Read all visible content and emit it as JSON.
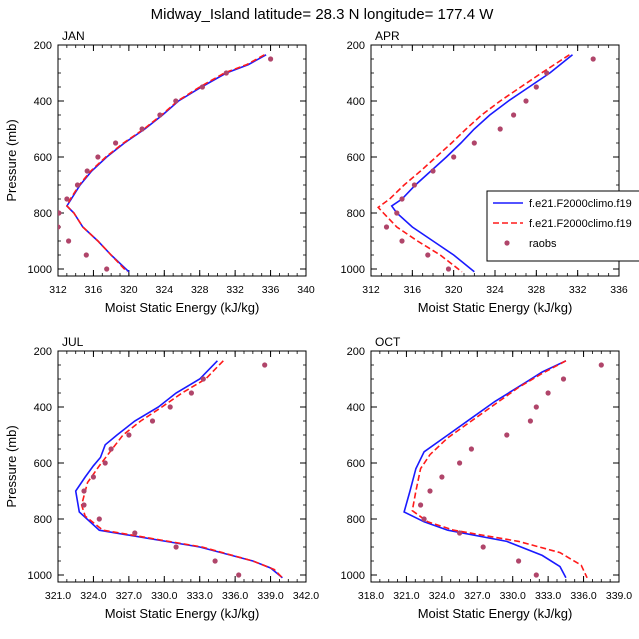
{
  "figure": {
    "title": "Midway_Island  latitude= 28.3 N longitude= 177.4 W"
  },
  "legend": {
    "items": [
      {
        "label": "f.e21.F2000climo.f19",
        "color": "#1a1aff",
        "style": "solid"
      },
      {
        "label": "f.e21.F2000climo.f19",
        "color": "#ff1a1a",
        "style": "dashed"
      },
      {
        "label": "raobs",
        "color": "#b0456a",
        "style": "marker"
      }
    ]
  },
  "colors": {
    "model_a": "#1a1aff",
    "model_b": "#ff1a1a",
    "raobs": "#b0456a"
  },
  "chart_data": [
    {
      "type": "line",
      "panel_label": "JAN",
      "xlabel": "Moist Static Energy (kJ/kg)",
      "ylabel": "Pressure (mb)",
      "xlim": [
        312,
        340
      ],
      "ylim": [
        1025,
        200
      ],
      "xticks": [
        "312",
        "316",
        "320",
        "324",
        "328",
        "332",
        "336",
        "340"
      ],
      "xtick_values": [
        312,
        316,
        320,
        324,
        328,
        332,
        336,
        340
      ],
      "yticks": [
        "200",
        "400",
        "600",
        "800",
        "1000"
      ],
      "ytick_values": [
        200,
        400,
        600,
        800,
        1000
      ],
      "series": [
        {
          "style": "solid",
          "color": "#1a1aff",
          "points": [
            [
              335.5,
              235
            ],
            [
              333.5,
              270
            ],
            [
              331,
              300
            ],
            [
              328.2,
              350
            ],
            [
              325.6,
              400
            ],
            [
              323.8,
              450
            ],
            [
              321.8,
              500
            ],
            [
              319.5,
              550
            ],
            [
              317.5,
              600
            ],
            [
              315.8,
              650
            ],
            [
              314.5,
              700
            ],
            [
              313.5,
              750
            ],
            [
              313,
              775
            ],
            [
              313.8,
              800
            ],
            [
              314.8,
              850
            ],
            [
              316.5,
              900
            ],
            [
              318,
              950
            ],
            [
              320,
              1010
            ]
          ]
        },
        {
          "style": "dashed",
          "color": "#ff1a1a",
          "points": [
            [
              335.3,
              235
            ],
            [
              333.3,
              270
            ],
            [
              330.8,
              300
            ],
            [
              328,
              350
            ],
            [
              325.5,
              400
            ],
            [
              323.7,
              450
            ],
            [
              321.7,
              500
            ],
            [
              319.4,
              550
            ],
            [
              317.4,
              600
            ],
            [
              315.7,
              650
            ],
            [
              314.4,
              700
            ],
            [
              313.4,
              750
            ],
            [
              313,
              775
            ],
            [
              313.8,
              800
            ],
            [
              314.8,
              850
            ],
            [
              316.5,
              900
            ],
            [
              318,
              950
            ],
            [
              319.8,
              1010
            ]
          ]
        }
      ],
      "raobs": [
        [
          336,
          250
        ],
        [
          331,
          300
        ],
        [
          328.3,
          350
        ],
        [
          325.3,
          400
        ],
        [
          323.5,
          450
        ],
        [
          321.5,
          500
        ],
        [
          318.5,
          550
        ],
        [
          316.5,
          600
        ],
        [
          315.3,
          650
        ],
        [
          314.2,
          700
        ],
        [
          313,
          750
        ],
        [
          312.1,
          800
        ],
        [
          312,
          850
        ],
        [
          313.2,
          900
        ],
        [
          315.2,
          950
        ],
        [
          317.5,
          1000
        ]
      ]
    },
    {
      "type": "line",
      "panel_label": "APR",
      "xlabel": "Moist Static Energy (kJ/kg)",
      "ylabel": "",
      "xlim": [
        312,
        336
      ],
      "ylim": [
        1025,
        200
      ],
      "xticks": [
        "312",
        "316",
        "320",
        "324",
        "328",
        "332",
        "336"
      ],
      "xtick_values": [
        312,
        316,
        320,
        324,
        328,
        332,
        336
      ],
      "yticks": [
        "200",
        "400",
        "600",
        "800",
        "1000"
      ],
      "ytick_values": [
        200,
        400,
        600,
        800,
        1000
      ],
      "series": [
        {
          "style": "solid",
          "color": "#1a1aff",
          "points": [
            [
              331.5,
              235
            ],
            [
              329.3,
              300
            ],
            [
              327.3,
              350
            ],
            [
              325.3,
              400
            ],
            [
              323.5,
              450
            ],
            [
              322,
              500
            ],
            [
              320.7,
              550
            ],
            [
              319.3,
              600
            ],
            [
              317.8,
              650
            ],
            [
              316.3,
              700
            ],
            [
              315,
              750
            ],
            [
              314,
              775
            ],
            [
              314.5,
              800
            ],
            [
              316,
              850
            ],
            [
              318,
              900
            ],
            [
              320,
              950
            ],
            [
              322,
              1010
            ]
          ]
        },
        {
          "style": "dashed",
          "color": "#ff1a1a",
          "points": [
            [
              331.2,
              235
            ],
            [
              328.5,
              300
            ],
            [
              326.5,
              350
            ],
            [
              324.5,
              400
            ],
            [
              322.7,
              450
            ],
            [
              321.2,
              500
            ],
            [
              319.8,
              550
            ],
            [
              318.3,
              600
            ],
            [
              316.8,
              650
            ],
            [
              315.2,
              700
            ],
            [
              313.8,
              750
            ],
            [
              312.7,
              780
            ],
            [
              313.2,
              800
            ],
            [
              314.5,
              850
            ],
            [
              316.5,
              900
            ],
            [
              318.7,
              950
            ],
            [
              320.8,
              1010
            ]
          ]
        }
      ],
      "raobs": [
        [
          333.5,
          250
        ],
        [
          329,
          300
        ],
        [
          328,
          350
        ],
        [
          327,
          400
        ],
        [
          325.8,
          450
        ],
        [
          324.5,
          500
        ],
        [
          322,
          550
        ],
        [
          320,
          600
        ],
        [
          318,
          650
        ],
        [
          316.2,
          700
        ],
        [
          315,
          750
        ],
        [
          314.5,
          800
        ],
        [
          313.5,
          850
        ],
        [
          315,
          900
        ],
        [
          317.5,
          950
        ],
        [
          319.5,
          1000
        ]
      ]
    },
    {
      "type": "line",
      "panel_label": "JUL",
      "xlabel": "Moist Static Energy (kJ/kg)",
      "ylabel": "Pressure (mb)",
      "xlim": [
        321,
        342
      ],
      "ylim": [
        1025,
        200
      ],
      "xticks": [
        "321.0",
        "324.0",
        "327.0",
        "330.0",
        "333.0",
        "336.0",
        "339.0",
        "342.0"
      ],
      "xtick_values": [
        321,
        324,
        327,
        330,
        333,
        336,
        339,
        342
      ],
      "yticks": [
        "200",
        "400",
        "600",
        "800",
        "1000"
      ],
      "ytick_values": [
        200,
        400,
        600,
        800,
        1000
      ],
      "series": [
        {
          "style": "solid",
          "color": "#1a1aff",
          "points": [
            [
              334.5,
              235
            ],
            [
              333,
              300
            ],
            [
              331,
              350
            ],
            [
              329.5,
              400
            ],
            [
              327.5,
              450
            ],
            [
              326,
              500
            ],
            [
              325,
              535
            ],
            [
              324.6,
              580
            ],
            [
              324,
              610
            ],
            [
              323.3,
              650
            ],
            [
              322.5,
              700
            ],
            [
              322.8,
              775
            ],
            [
              324.5,
              840
            ],
            [
              333,
              900
            ],
            [
              337.5,
              950
            ],
            [
              339,
              975
            ],
            [
              340,
              1010
            ]
          ]
        },
        {
          "style": "dashed",
          "color": "#ff1a1a",
          "points": [
            [
              335,
              235
            ],
            [
              333.5,
              300
            ],
            [
              331.5,
              350
            ],
            [
              329.8,
              400
            ],
            [
              328,
              450
            ],
            [
              326.5,
              500
            ],
            [
              325.5,
              555
            ],
            [
              324.5,
              610
            ],
            [
              323.5,
              670
            ],
            [
              323,
              750
            ],
            [
              323.3,
              790
            ],
            [
              324.8,
              840
            ],
            [
              333.2,
              900
            ],
            [
              337.5,
              950
            ],
            [
              339.3,
              980
            ],
            [
              340,
              1010
            ]
          ]
        }
      ],
      "raobs": [
        [
          338.5,
          250
        ],
        [
          333.3,
          300
        ],
        [
          332.3,
          350
        ],
        [
          330.5,
          400
        ],
        [
          329,
          450
        ],
        [
          327,
          500
        ],
        [
          325.5,
          550
        ],
        [
          325,
          600
        ],
        [
          324,
          650
        ],
        [
          323.2,
          700
        ],
        [
          323.2,
          750
        ],
        [
          324.5,
          800
        ],
        [
          327.5,
          850
        ],
        [
          331,
          900
        ],
        [
          334.3,
          950
        ],
        [
          336.3,
          1000
        ]
      ]
    },
    {
      "type": "line",
      "panel_label": "OCT",
      "xlabel": "Moist Static Energy (kJ/kg)",
      "ylabel": "",
      "xlim": [
        318,
        339
      ],
      "ylim": [
        1025,
        200
      ],
      "xticks": [
        "318.0",
        "321.0",
        "324.0",
        "327.0",
        "330.0",
        "333.0",
        "336.0",
        "339.0"
      ],
      "xtick_values": [
        318,
        321,
        324,
        327,
        330,
        333,
        336,
        339
      ],
      "yticks": [
        "200",
        "400",
        "600",
        "800",
        "1000"
      ],
      "ytick_values": [
        200,
        400,
        600,
        800,
        1000
      ],
      "series": [
        {
          "style": "solid",
          "color": "#1a1aff",
          "points": [
            [
              334.5,
              235
            ],
            [
              332.5,
              275
            ],
            [
              330.8,
              320
            ],
            [
              328.5,
              380
            ],
            [
              326.5,
              440
            ],
            [
              324.5,
              500
            ],
            [
              322.5,
              560
            ],
            [
              321.8,
              620
            ],
            [
              321.3,
              700
            ],
            [
              320.8,
              775
            ],
            [
              322.5,
              810
            ],
            [
              324.5,
              840
            ],
            [
              329.5,
              880
            ],
            [
              332.5,
              930
            ],
            [
              334,
              970
            ],
            [
              334.5,
              1010
            ]
          ]
        },
        {
          "style": "dashed",
          "color": "#ff1a1a",
          "points": [
            [
              334.5,
              235
            ],
            [
              332.5,
              280
            ],
            [
              330.5,
              330
            ],
            [
              328.5,
              390
            ],
            [
              326.5,
              450
            ],
            [
              324.5,
              510
            ],
            [
              323,
              570
            ],
            [
              322.2,
              620
            ],
            [
              321.8,
              700
            ],
            [
              321.5,
              770
            ],
            [
              322.8,
              810
            ],
            [
              325,
              840
            ],
            [
              330.5,
              880
            ],
            [
              334,
              920
            ],
            [
              335.8,
              965
            ],
            [
              336.3,
              1010
            ]
          ]
        }
      ],
      "raobs": [
        [
          337.5,
          250
        ],
        [
          334.3,
          300
        ],
        [
          333,
          350
        ],
        [
          332,
          400
        ],
        [
          331.5,
          450
        ],
        [
          329.5,
          500
        ],
        [
          326.5,
          550
        ],
        [
          325.5,
          600
        ],
        [
          324,
          650
        ],
        [
          323,
          700
        ],
        [
          322.2,
          750
        ],
        [
          322.5,
          800
        ],
        [
          325.5,
          850
        ],
        [
          327.5,
          900
        ],
        [
          330.5,
          950
        ],
        [
          332,
          1000
        ]
      ]
    }
  ]
}
